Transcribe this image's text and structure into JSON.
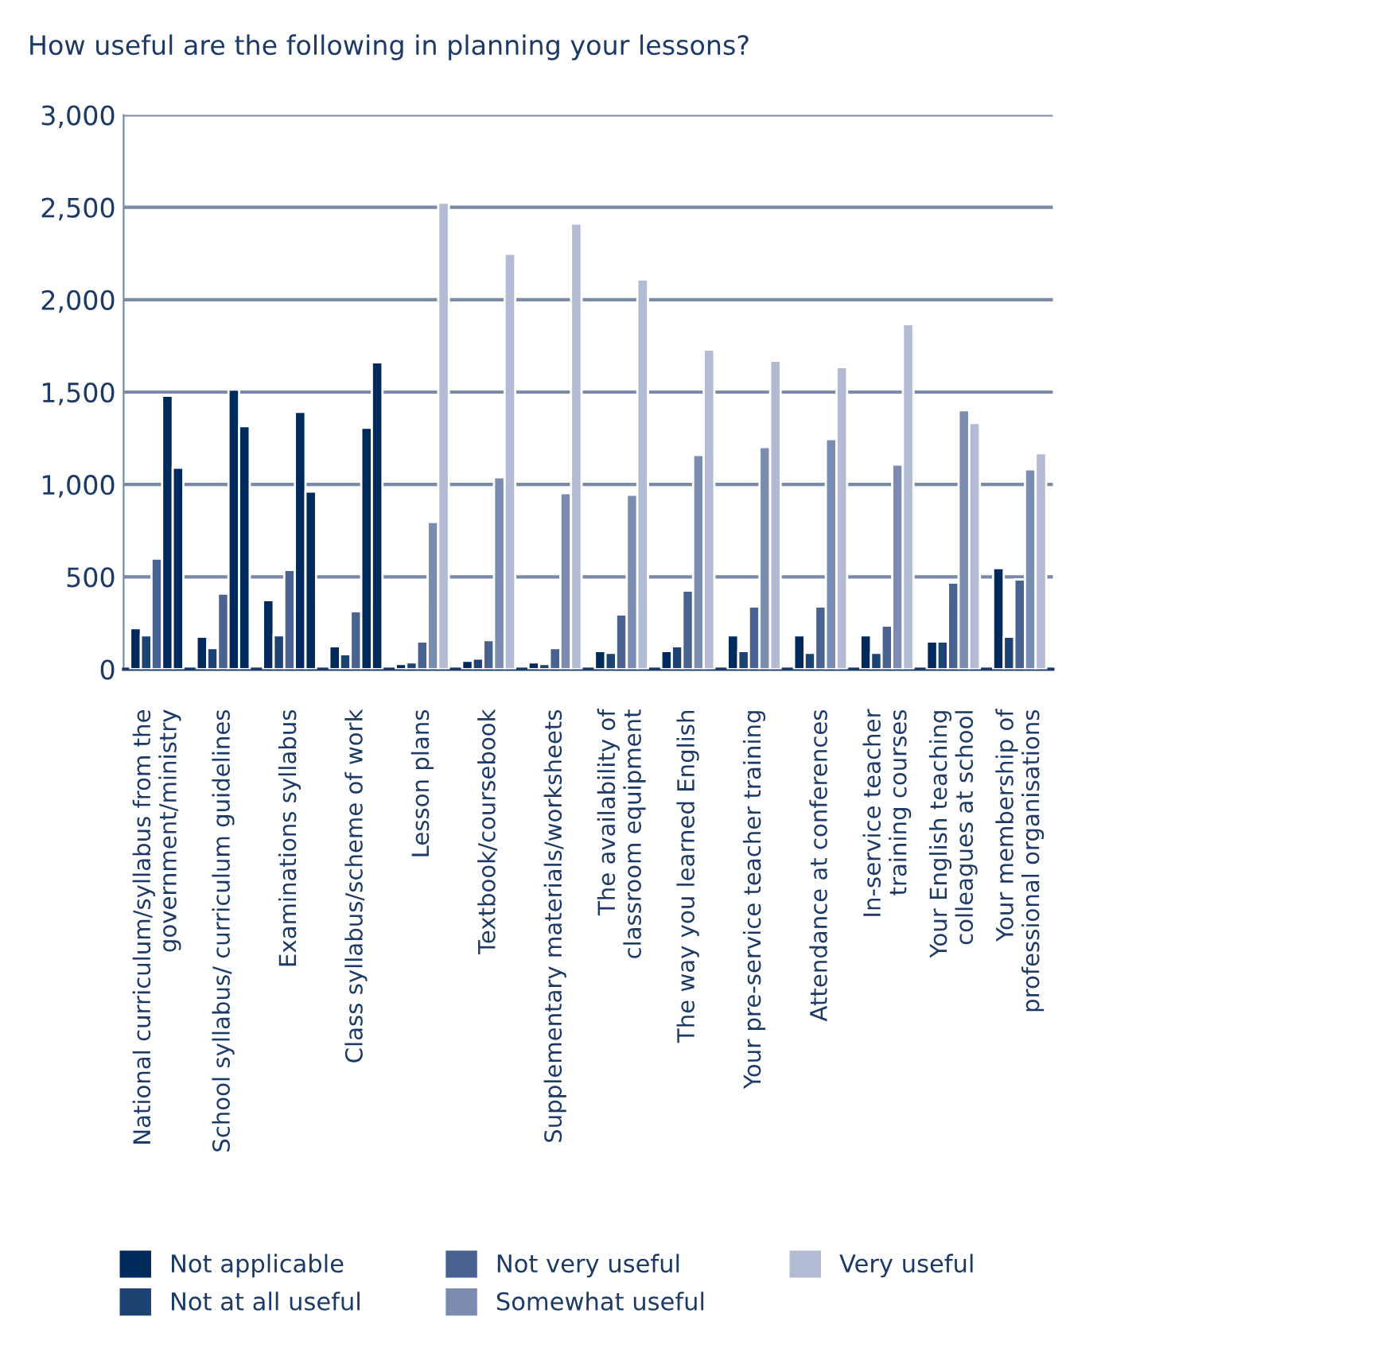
{
  "chart_data": {
    "type": "bar",
    "title": "How useful are the following in planning your lessons?",
    "categories": [
      "National curriculum/syllabus from the\ngovernment/ministry",
      "School syllabus/ curriculum guidelines",
      "Examinations syllabus",
      "Class syllabus/scheme of work",
      "Lesson plans",
      "Textbook/coursebook",
      "Supplementary materials/worksheets",
      "The availability of\nclassroom equipment",
      "The way you learned English",
      "Your pre-service teacher training",
      "Attendance at conferences",
      "In-service teacher\ntraining courses",
      "Your English teaching\ncolleagues at school",
      "Your membership of\nprofessional organisations"
    ],
    "series": [
      {
        "name": "Not applicable",
        "color": "#002a5c",
        "values": [
          222,
          176,
          374,
          124,
          29,
          46,
          37,
          98,
          98,
          184,
          184,
          184,
          150,
          547
        ]
      },
      {
        "name": "Not at all useful",
        "color": "#1d4373",
        "values": [
          184,
          115,
          184,
          81,
          37,
          58,
          29,
          89,
          124,
          98,
          89,
          89,
          150,
          176
        ]
      },
      {
        "name": "Not very useful",
        "color": "#4a6290",
        "values": [
          599,
          409,
          538,
          314,
          150,
          158,
          115,
          296,
          426,
          340,
          340,
          236,
          469,
          486
        ]
      },
      {
        "name": "Somewhat useful",
        "color": "#7a8cb0",
        "colors": [
          "#002a5c",
          "#002a5c",
          "#002a5c",
          "#002a5c",
          "#7a8cb0",
          "#7a8cb0",
          "#7a8cb0",
          "#7a8cb0",
          "#7a8cb0",
          "#7a8cb0",
          "#7a8cb0",
          "#7a8cb0",
          "#7a8cb0",
          "#7a8cb0"
        ],
        "values": [
          1480,
          1514,
          1393,
          1307,
          797,
          1039,
          953,
          944,
          1160,
          1203,
          1246,
          1108,
          1402,
          1082
        ]
      },
      {
        "name": "Very useful",
        "color": "#b2bad4",
        "colors": [
          "#002a5c",
          "#002a5c",
          "#002a5c",
          "#002a5c",
          "#b2bad4",
          "#b2bad4",
          "#b2bad4",
          "#b2bad4",
          "#b2bad4",
          "#b2bad4",
          "#b2bad4",
          "#b2bad4",
          "#b2bad4",
          "#b2bad4"
        ],
        "values": [
          1091,
          1316,
          961,
          1661,
          2525,
          2248,
          2412,
          2110,
          1730,
          1670,
          1635,
          1868,
          1333,
          1169
        ]
      }
    ],
    "ylim": [
      0,
      3000
    ],
    "yticks": [
      {
        "value": 0,
        "label": "0"
      },
      {
        "value": 500,
        "label": "500"
      },
      {
        "value": 1000,
        "label": "1,000"
      },
      {
        "value": 1500,
        "label": "1,500"
      },
      {
        "value": 2000,
        "label": "2,000"
      },
      {
        "value": 2500,
        "label": "2,500"
      },
      {
        "value": 3000,
        "label": "3,000"
      }
    ],
    "grid": "y",
    "legend": "bottom"
  }
}
